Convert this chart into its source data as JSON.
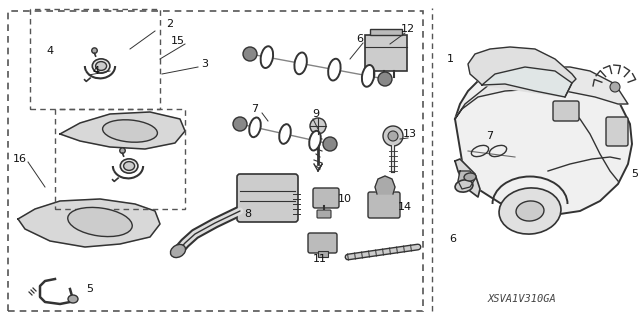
{
  "bg_color": "#ffffff",
  "figsize": [
    6.4,
    3.19
  ],
  "dpi": 100,
  "watermark": "XSVA1V310GA",
  "line_color": "#333333",
  "light_gray": "#cccccc",
  "mid_gray": "#999999",
  "dark_gray": "#555555"
}
